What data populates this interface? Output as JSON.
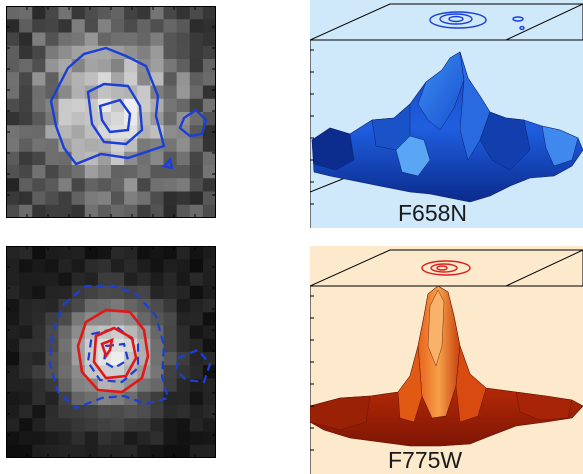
{
  "figure": {
    "top_right": {
      "label": "F658N",
      "background": "#cfe9fb",
      "surface_color": "#1a4fd0",
      "contour_color": "#1a3fd6"
    },
    "bottom_right": {
      "label": "F775W",
      "background": "#fde9cc",
      "surface_color": "#d4410c",
      "contour_color": "#d92020"
    },
    "top_left": {
      "contour_color": "#1a3fd6",
      "contour_style": "solid"
    },
    "bottom_left": {
      "contour_colors": [
        "#e01818",
        "#1a3fd6"
      ],
      "contour_styles": [
        "solid",
        "dashed"
      ]
    }
  }
}
